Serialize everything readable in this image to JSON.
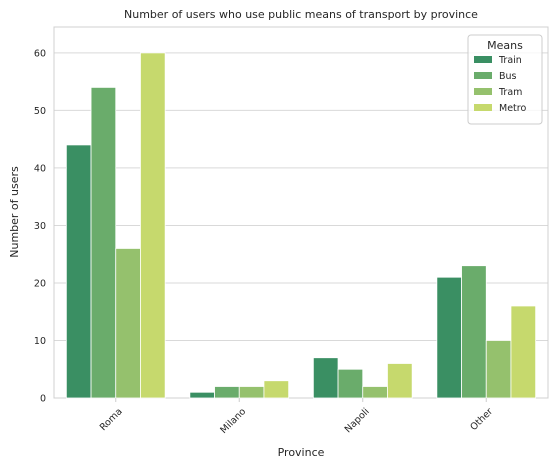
{
  "chart_data": {
    "type": "bar",
    "title": "Number of users who use public means of transport by province",
    "xlabel": "Province",
    "ylabel": "Number of users",
    "categories": [
      "Roma",
      "Milano",
      "Napoli",
      "Other"
    ],
    "series": [
      {
        "name": "Train",
        "values": [
          44,
          1,
          7,
          21
        ],
        "color": "#3a8f63"
      },
      {
        "name": "Bus",
        "values": [
          54,
          2,
          5,
          23
        ],
        "color": "#6aac6b"
      },
      {
        "name": "Tram",
        "values": [
          26,
          2,
          2,
          10
        ],
        "color": "#95c16d"
      },
      {
        "name": "Metro",
        "values": [
          60,
          3,
          6,
          16
        ],
        "color": "#c6d96d"
      }
    ],
    "ylim": [
      0,
      64.5
    ],
    "yticks": [
      0,
      10,
      20,
      30,
      40,
      50,
      60
    ],
    "grid": true,
    "legend": {
      "title": "Means",
      "position": "top-right"
    }
  }
}
